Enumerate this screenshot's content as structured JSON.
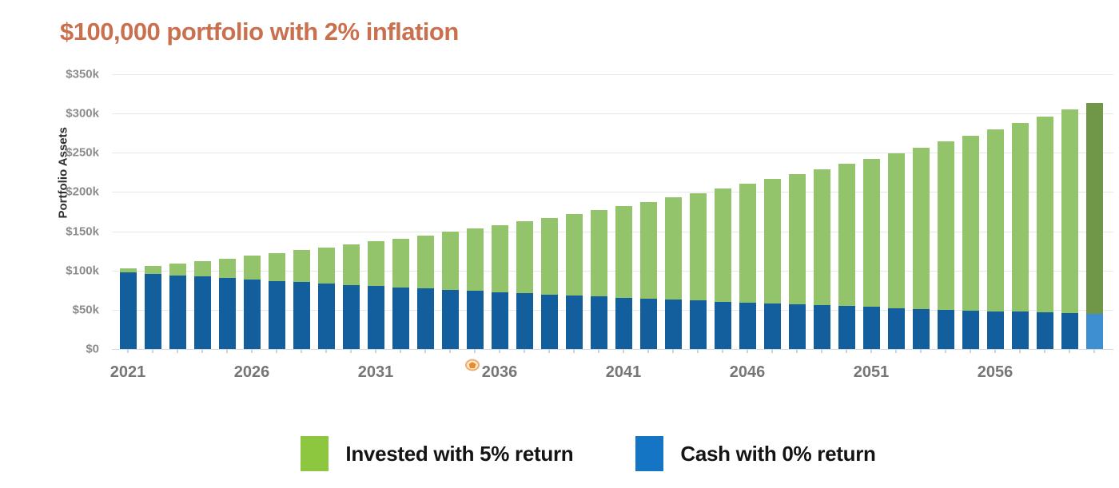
{
  "title": {
    "text": "$100,000 portfolio with 2% inflation",
    "color": "#c9704f"
  },
  "y_axis": {
    "label": "Portfolio Assets"
  },
  "legend": {
    "items": [
      {
        "label": "Invested with 5% return",
        "color": "#8dc63f"
      },
      {
        "label": "Cash with 0% return",
        "color": "#1375c4"
      }
    ]
  },
  "annotation_marker": {
    "name": "orange-handle",
    "x_year": 2035,
    "ring_color": "#f0ad72",
    "fill_color": "#e98b2a"
  },
  "chart_data": {
    "type": "bar",
    "stacked": true,
    "title": "$100,000 portfolio with 2% inflation",
    "xlabel": "",
    "ylabel": "Portfolio Assets",
    "ylim_k": [
      0,
      350
    ],
    "grid": true,
    "legend_position": "bottom",
    "yticks": [
      {
        "value_k": 0,
        "label": "$0"
      },
      {
        "value_k": 50,
        "label": "$50k"
      },
      {
        "value_k": 100,
        "label": "$100k"
      },
      {
        "value_k": 150,
        "label": "$150k"
      },
      {
        "value_k": 200,
        "label": "$200k"
      },
      {
        "value_k": 250,
        "label": "$250k"
      },
      {
        "value_k": 300,
        "label": "$300k"
      },
      {
        "value_k": 350,
        "label": "$350k"
      }
    ],
    "xtick_labels": [
      "2021",
      "2026",
      "2031",
      "2036",
      "2041",
      "2046",
      "2051",
      "2056"
    ],
    "years": [
      2021,
      2022,
      2023,
      2024,
      2025,
      2026,
      2027,
      2028,
      2029,
      2030,
      2031,
      2032,
      2033,
      2034,
      2035,
      2036,
      2037,
      2038,
      2039,
      2040,
      2041,
      2042,
      2043,
      2044,
      2045,
      2046,
      2047,
      2048,
      2049,
      2050,
      2051,
      2052,
      2053,
      2054,
      2055,
      2056,
      2057,
      2058,
      2059,
      2060
    ],
    "series": [
      {
        "name": "Cash with 0% return",
        "color": "#135f9e",
        "values_k": [
          98.0,
          96.0,
          94.1,
          92.2,
          90.4,
          88.6,
          86.8,
          85.1,
          83.4,
          81.7,
          80.1,
          78.5,
          76.9,
          75.4,
          73.9,
          72.4,
          70.9,
          69.5,
          68.1,
          66.8,
          65.4,
          64.1,
          62.8,
          61.6,
          60.3,
          59.1,
          58.0,
          56.8,
          55.7,
          54.5,
          53.5,
          52.4,
          51.3,
          50.3,
          49.3,
          48.3,
          47.4,
          46.4,
          45.5,
          44.6
        ]
      },
      {
        "name": "Invested with 5% return",
        "color": "#93c36b",
        "values_k": [
          4.9,
          9.9,
          14.9,
          19.9,
          25.0,
          30.1,
          35.4,
          40.6,
          45.9,
          51.4,
          56.9,
          62.4,
          68.1,
          73.8,
          79.6,
          85.6,
          91.7,
          97.8,
          104.0,
          110.3,
          116.9,
          123.5,
          130.2,
          137.0,
          144.1,
          151.2,
          158.4,
          165.9,
          173.4,
          181.3,
          189.1,
          197.2,
          205.6,
          214.0,
          222.7,
          231.6,
          240.6,
          249.9,
          259.4,
          269.2
        ]
      }
    ],
    "totals_k": [
      102.9,
      105.9,
      109.0,
      112.1,
      115.4,
      118.7,
      122.2,
      125.7,
      129.3,
      133.1,
      137.0,
      140.9,
      145.0,
      149.2,
      153.5,
      158.0,
      162.6,
      167.3,
      172.1,
      177.1,
      182.3,
      187.6,
      193.0,
      198.6,
      204.4,
      210.3,
      216.4,
      222.7,
      229.1,
      235.8,
      242.6,
      249.6,
      256.9,
      264.3,
      272.0,
      279.9,
      288.0,
      296.3,
      304.9,
      313.8
    ],
    "highlighted_year": 2060,
    "highlight_colors": {
      "cash": "#3e8ed2",
      "invested": "#6f9747"
    }
  }
}
